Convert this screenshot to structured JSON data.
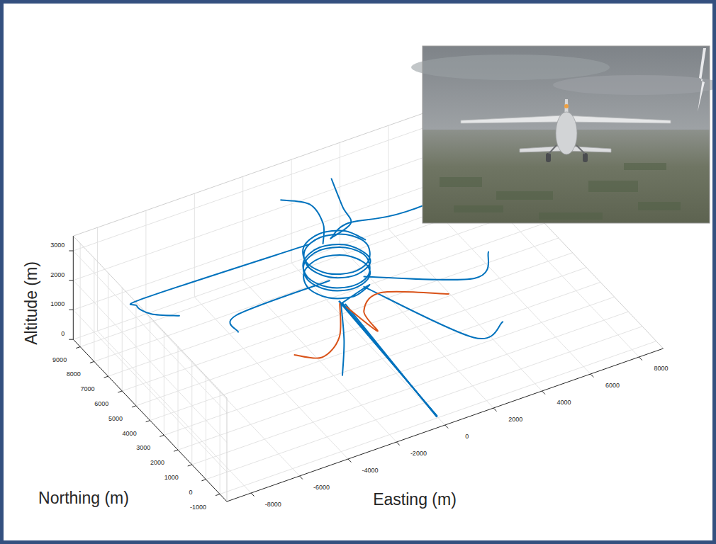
{
  "chart_data": {
    "type": "line3d",
    "xlabel": "Easting (m)",
    "ylabel": "Northing (m)",
    "zlabel": "Altitude (m)",
    "xlim": [
      -9000,
      9000
    ],
    "ylim": [
      -1500,
      9500
    ],
    "zlim": [
      0,
      3500
    ],
    "xticks": [
      -8000,
      -6000,
      -4000,
      -2000,
      0,
      2000,
      4000,
      6000,
      8000
    ],
    "yticks": [
      -1000,
      0,
      1000,
      2000,
      3000,
      4000,
      5000,
      6000,
      7000,
      8000,
      9000
    ],
    "zticks": [
      0,
      1000,
      2000,
      3000
    ],
    "grid": true,
    "series": [
      {
        "color": "#0072bd",
        "x": [
          800,
          449,
          -400,
          -1249,
          -1600,
          -1249,
          -400,
          449,
          900,
          549,
          -300,
          -1149,
          -1500,
          -1149,
          -300,
          549,
          750,
          399,
          -450,
          -1299,
          -1650,
          -1299,
          -450,
          399,
          850,
          499,
          -350,
          -1199,
          -1550,
          -1199,
          -350,
          499,
          800,
          449,
          -400,
          -1249,
          -1600,
          -1249,
          -400,
          449,
          -900
        ],
        "y": [
          5600,
          6449,
          6800,
          6449,
          5600,
          4751,
          4400,
          4751,
          5700,
          6549,
          6900,
          6549,
          5700,
          4851,
          4500,
          4851,
          5500,
          6349,
          6700,
          6349,
          5500,
          4651,
          4300,
          4651,
          5650,
          6499,
          6850,
          6499,
          5650,
          4801,
          4450,
          4801,
          5550,
          6399,
          6750,
          6399,
          5550,
          4701,
          4350,
          4701,
          4300
        ],
        "z": [
          2500,
          2475,
          2450,
          2425,
          2400,
          2375,
          2350,
          2325,
          2300,
          2275,
          2250,
          2225,
          2200,
          2175,
          2150,
          2125,
          2100,
          2075,
          2050,
          2025,
          2000,
          1975,
          1950,
          1925,
          1900,
          1875,
          1850,
          1825,
          1800,
          1775,
          1750,
          1725,
          1700,
          1675,
          1650,
          1625,
          1600,
          1575,
          1550,
          1525,
          1500
        ]
      },
      {
        "color": "#0072bd",
        "x": [
          -900,
          0
        ],
        "y": [
          4300,
          -900
        ],
        "z": [
          1500,
          0
        ]
      },
      {
        "color": "#0072bd",
        "x": [
          -1000,
          20
        ],
        "y": [
          4350,
          -880
        ],
        "z": [
          1550,
          0
        ]
      },
      {
        "color": "#0072bd",
        "x": [
          -800,
          -20
        ],
        "y": [
          4250,
          -920
        ],
        "z": [
          1450,
          0
        ]
      },
      {
        "color": "#0072bd",
        "x": [
          -950,
          10
        ],
        "y": [
          4400,
          -900
        ],
        "z": [
          1520,
          0
        ]
      },
      {
        "color": "#0072bd",
        "marker": "aircraft",
        "x": [
          -5887,
          -6700,
          -6955,
          -6500,
          -984
        ],
        "y": [
          7309,
          7900,
          8498,
          8600,
          6518
        ],
        "z": [
          1000,
          1000,
          1050,
          1150,
          2400
        ]
      },
      {
        "color": "#0072bd",
        "marker": "aircraft",
        "x": [
          -4542,
          -4192,
          -900
        ],
        "y": [
          5427,
          6166,
          5209
        ],
        "z": [
          1000,
          1100,
          1800
        ]
      },
      {
        "color": "#0072bd",
        "marker": "aircraft",
        "x": [
          -1080,
          -316,
          -299,
          -629
        ],
        "y": [
          8382,
          7647,
          6709,
          6151
        ],
        "z": [
          3000,
          3000,
          2800,
          2500
        ]
      },
      {
        "color": "#0072bd",
        "marker": "aircraft",
        "x": [
          1106,
          716,
          659,
          -200
        ],
        "y": [
          8553,
          7072,
          6397,
          6300
        ],
        "z": [
          3000,
          2900,
          2700,
          2500
        ]
      },
      {
        "color": "#0072bd",
        "marker": "aircraft",
        "x": [
          7725,
          2533,
          600,
          -200
        ],
        "y": [
          5783,
          5700,
          6450,
          6350
        ],
        "z": [
          3000,
          2900,
          2700,
          2450
        ]
      },
      {
        "color": "#0072bd",
        "marker": "aircraft",
        "x": [
          5125,
          4085,
          287
        ],
        "y": [
          4285,
          3492,
          4801
        ],
        "z": [
          1500,
          1300,
          1800
        ]
      },
      {
        "color": "#0072bd",
        "marker": "aircraft",
        "x": [
          4121,
          2844,
          159
        ],
        "y": [
          1523,
          1394,
          4585
        ],
        "z": [
          800,
          700,
          1600
        ]
      },
      {
        "color": "#0072bd",
        "marker": "aircraft",
        "x": [
          -1980,
          -1344,
          -961
        ],
        "y": [
          2415,
          3397,
          4285
        ],
        "z": [
          300,
          800,
          1500
        ]
      },
      {
        "color": "#d95319",
        "marker": "aircraft",
        "x": [
          -2861,
          -2083,
          -1479,
          -1000
        ],
        "y": [
          4308,
          3692,
          3505,
          4300
        ],
        "z": [
          300,
          300,
          900,
          1500
        ]
      },
      {
        "color": "#d95319",
        "marker": "aircraft",
        "x": [
          2918,
          872,
          49,
          230,
          -801
        ],
        "y": [
          3306,
          4582,
          4398,
          3738,
          4168
        ],
        "z": [
          1200,
          1200,
          900,
          500,
          1400
        ]
      }
    ]
  }
}
